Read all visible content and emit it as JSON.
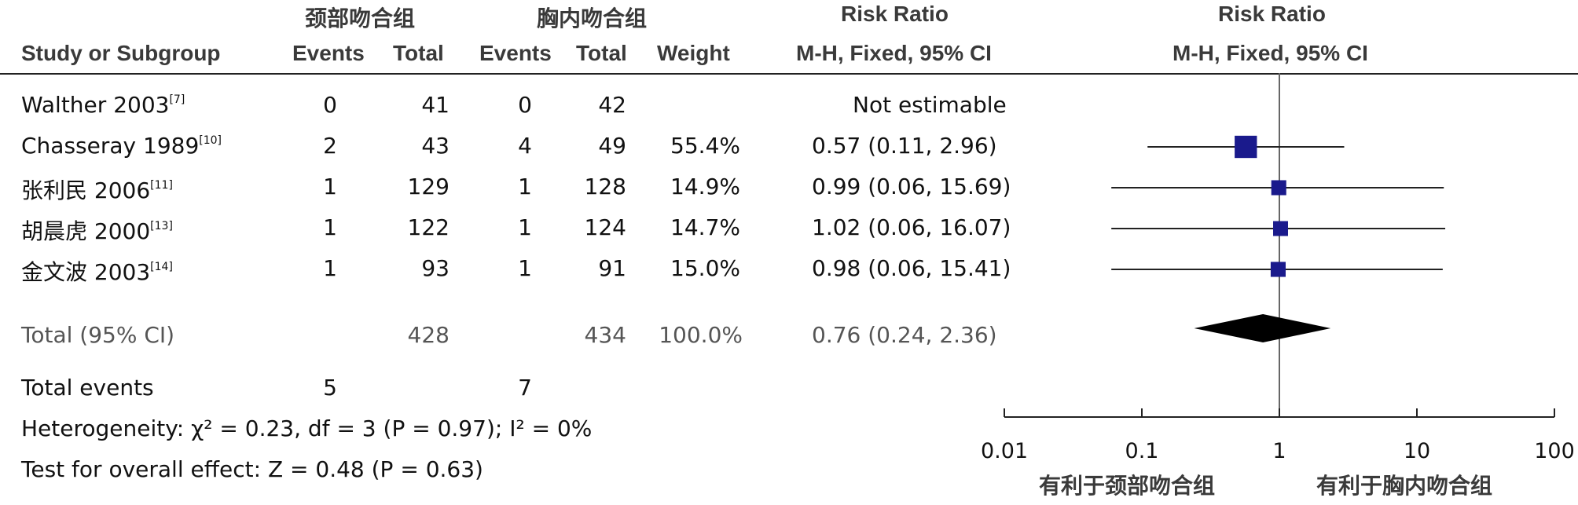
{
  "groups": {
    "experimental": "颈部吻合组",
    "control": "胸内吻合组"
  },
  "headers": {
    "study": "Study or Subgroup",
    "events": "Events",
    "total": "Total",
    "weight": "Weight",
    "rr_title": "Risk Ratio",
    "rr_method": "M-H, Fixed, 95% CI",
    "plot_title": "Risk Ratio",
    "plot_method": "M-H, Fixed, 95% CI"
  },
  "studies": [
    {
      "name": "Walther 2003",
      "ref": "[7]",
      "e_events": "0",
      "e_total": "41",
      "c_events": "0",
      "c_total": "42",
      "weight": "",
      "rr_text": "Not estimable"
    },
    {
      "name": "Chasseray 1989",
      "ref": "[10]",
      "e_events": "2",
      "e_total": "43",
      "c_events": "4",
      "c_total": "49",
      "weight": "55.4%",
      "rr_text": "0.57 (0.11, 2.96)"
    },
    {
      "name": "张利民 2006",
      "ref": "[11]",
      "e_events": "1",
      "e_total": "129",
      "c_events": "1",
      "c_total": "128",
      "weight": "14.9%",
      "rr_text": "0.99 (0.06, 15.69)"
    },
    {
      "name": "胡晨虎 2000",
      "ref": "[13]",
      "e_events": "1",
      "e_total": "122",
      "c_events": "1",
      "c_total": "124",
      "weight": "14.7%",
      "rr_text": "1.02 (0.06, 16.07)"
    },
    {
      "name": "金文波 2003",
      "ref": "[14]",
      "e_events": "1",
      "e_total": "93",
      "c_events": "1",
      "c_total": "91",
      "weight": "15.0%",
      "rr_text": "0.98 (0.06, 15.41)"
    }
  ],
  "total": {
    "label": "Total (95% CI)",
    "e_total": "428",
    "c_total": "434",
    "weight": "100.0%",
    "rr_text": "0.76 (0.24, 2.36)"
  },
  "total_events": {
    "label": "Total events",
    "e_events": "5",
    "c_events": "7"
  },
  "heterogeneity": "Heterogeneity: χ² = 0.23, df = 3 (P = 0.97); I² = 0%",
  "overall_effect": "Test for overall effect: Z = 0.48 (P = 0.63)",
  "axis": {
    "ticks": [
      "0.01",
      "0.1",
      "1",
      "10",
      "100"
    ],
    "favours_left": "有利于颈部吻合组",
    "favours_right": "有利于胸内吻合组"
  },
  "colors": {
    "marker": "#1a1a8c",
    "diamond": "#000000"
  },
  "chart_data": {
    "type": "forest",
    "scale": "log",
    "xlim": [
      0.01,
      100
    ],
    "null_line": 1,
    "studies": [
      {
        "name": "Walther 2003",
        "rr": null,
        "lower": null,
        "upper": null,
        "weight": null
      },
      {
        "name": "Chasseray 1989",
        "rr": 0.57,
        "lower": 0.11,
        "upper": 2.96,
        "weight": 55.4
      },
      {
        "name": "张利民 2006",
        "rr": 0.99,
        "lower": 0.06,
        "upper": 15.69,
        "weight": 14.9
      },
      {
        "name": "胡晨虎 2000",
        "rr": 1.02,
        "lower": 0.06,
        "upper": 16.07,
        "weight": 14.7
      },
      {
        "name": "金文波 2003",
        "rr": 0.98,
        "lower": 0.06,
        "upper": 15.41,
        "weight": 15.0
      }
    ],
    "pooled": {
      "rr": 0.76,
      "lower": 0.24,
      "upper": 2.36
    }
  }
}
